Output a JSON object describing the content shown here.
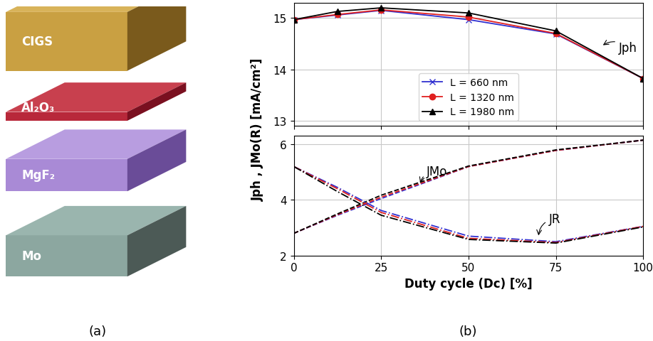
{
  "diagram": {
    "label": "(a)",
    "layers": [
      "CIGS",
      "Al₂O₃",
      "MgF₂",
      "Mo"
    ]
  },
  "panel_label": "(b)",
  "xlabel": "Duty cycle (Dc) [%]",
  "ylabel": "Jph , JMo(R) [mA/cm²]",
  "chart_data": [
    {
      "type": "line",
      "grid": true,
      "legend": "lower center",
      "tick_labels": "y",
      "xlim": [
        0,
        100
      ],
      "xticks": [
        0,
        25,
        50,
        75,
        100
      ],
      "ylim": [
        12.9,
        15.3
      ],
      "yticks": [
        13,
        14,
        15
      ],
      "annotations": [
        "Jph"
      ],
      "x": [
        0,
        12.5,
        25,
        50,
        75,
        100
      ],
      "series": [
        {
          "name": "L = 660 nm",
          "color": "#3030d0",
          "marker": "x",
          "line_style": "solid",
          "values": [
            14.97,
            15.06,
            15.15,
            14.97,
            14.69,
            13.82
          ]
        },
        {
          "name": "L = 1320 nm",
          "color": "#e02020",
          "marker": "o",
          "line_style": "solid",
          "values": [
            14.97,
            15.07,
            15.16,
            15.02,
            14.7,
            13.82
          ]
        },
        {
          "name": "L = 1980 nm",
          "color": "#000000",
          "marker": "^",
          "line_style": "solid",
          "values": [
            14.97,
            15.13,
            15.2,
            15.1,
            14.75,
            13.82
          ]
        }
      ]
    },
    {
      "type": "line",
      "grid": true,
      "xlim": [
        0,
        100
      ],
      "xticks": [
        0,
        25,
        50,
        75,
        100
      ],
      "ylim": [
        2,
        6.3
      ],
      "yticks": [
        2,
        4,
        6
      ],
      "annotations": [
        "JMo",
        "JR"
      ],
      "x": [
        0,
        12.5,
        25,
        50,
        75,
        100
      ],
      "series": [
        {
          "name": "L = 660 nm",
          "color": "#3030d0",
          "marker": "none",
          "line_style": "dashed",
          "values": [
            2.8,
            3.45,
            4.05,
            5.2,
            5.78,
            6.15
          ]
        },
        {
          "name": "L = 1320 nm",
          "color": "#e02020",
          "marker": "none",
          "line_style": "dashed",
          "values": [
            2.8,
            3.47,
            4.1,
            5.2,
            5.78,
            6.15
          ]
        },
        {
          "name": "L = 1980 nm",
          "color": "#000000",
          "marker": "none",
          "line_style": "dashed",
          "values": [
            2.8,
            3.5,
            4.17,
            5.22,
            5.8,
            6.15
          ]
        },
        {
          "name": "L = 660 nm",
          "color": "#3030d0",
          "marker": "none",
          "line_style": "dashdot",
          "values": [
            5.2,
            4.45,
            3.62,
            2.7,
            2.5,
            3.05
          ]
        },
        {
          "name": "L = 1320 nm",
          "color": "#e02020",
          "marker": "none",
          "line_style": "dashdot",
          "values": [
            5.2,
            4.4,
            3.55,
            2.62,
            2.47,
            3.05
          ]
        },
        {
          "name": "L = 1980 nm",
          "color": "#000000",
          "marker": "none",
          "line_style": "dashdot",
          "values": [
            5.2,
            4.3,
            3.45,
            2.58,
            2.45,
            3.03
          ]
        }
      ]
    }
  ]
}
